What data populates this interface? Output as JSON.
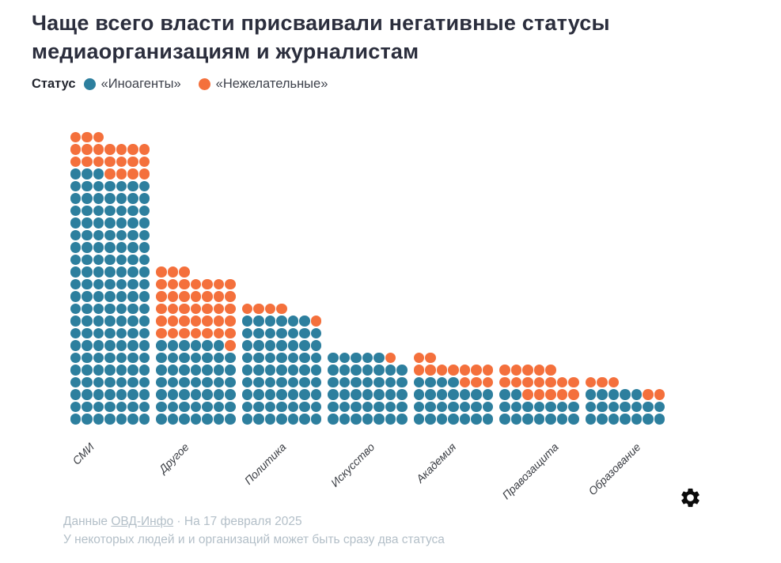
{
  "title": "Чаще всего власти присваивали негативные статусы\nмедиаорганизациям и журналистам",
  "legend": {
    "label": "Статус",
    "items": [
      {
        "label": "«Иноагенты»",
        "color": "#2D7F9E"
      },
      {
        "label": "«Нежелательные»",
        "color": "#F4703C"
      }
    ]
  },
  "chart_data": {
    "type": "waffle-bar",
    "unit_note": "1 dot = 1 person or organization",
    "dots_per_row": 7,
    "categories": [
      "СМИ",
      "Другое",
      "Политика",
      "Искусство",
      "Академия",
      "Правозащита",
      "Образование"
    ],
    "series": [
      {
        "name": "«Иноагенты»",
        "color": "#2D7F9E",
        "values": [
          143,
          48,
          62,
          40,
          25,
          16,
          19
        ]
      },
      {
        "name": "«Нежелательные»",
        "color": "#F4703C",
        "values": [
          21,
          39,
          5,
          1,
          12,
          17,
          5
        ]
      }
    ],
    "totals": [
      164,
      87,
      67,
      41,
      37,
      33,
      24
    ],
    "legend_position": "top",
    "axis": "category labels rotated -45deg below columns"
  },
  "footer": {
    "source_prefix": "Данные",
    "source_link": "ОВД-Инфо",
    "separator": "·",
    "date_text": "На 17 февраля 2025",
    "note": "У некоторых людей и и организаций может быть сразу два статуса"
  },
  "icons": {
    "gear_icon": "⚙"
  },
  "colors": {
    "blue": "#2D7F9E",
    "orange": "#F4703C",
    "title": "#2B2E3D",
    "footer_text": "#B3BFC8",
    "category_label": "#3A3D43"
  }
}
